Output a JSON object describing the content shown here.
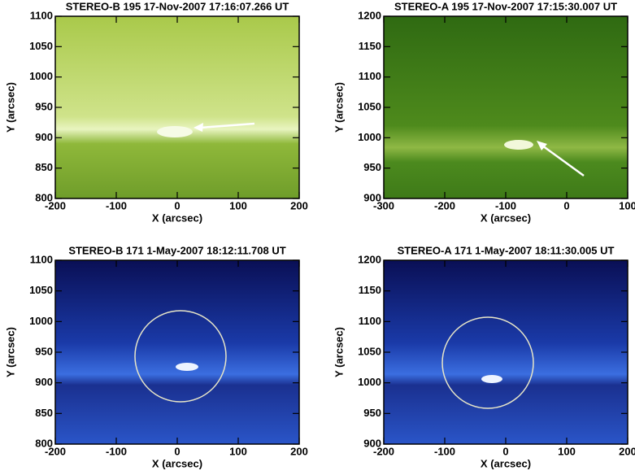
{
  "chart_data": [
    {
      "type": "image",
      "title": "STEREO-B 195 17-Nov-2007 17:16:07.266 UT",
      "xlabel": "X (arcsec)",
      "ylabel": "Y (arcsec)",
      "palette": "green",
      "xlim": [
        -200,
        200
      ],
      "xticks": [
        -200,
        -100,
        0,
        100,
        200
      ],
      "ylim": [
        800,
        1100
      ],
      "yticks": [
        800,
        850,
        900,
        950,
        1000,
        1050,
        1100
      ]
    },
    {
      "type": "image",
      "title": "STEREO-A 195 17-Nov-2007 17:15:30.007 UT",
      "xlabel": "X (arcsec)",
      "ylabel": "Y (arcsec)",
      "palette": "green",
      "xlim": [
        -300,
        100
      ],
      "xticks": [
        -300,
        -200,
        -100,
        0,
        100
      ],
      "ylim": [
        900,
        1200
      ],
      "yticks": [
        900,
        950,
        1000,
        1050,
        1100,
        1150,
        1200
      ]
    },
    {
      "type": "image",
      "title": "STEREO-B 171 1-May-2007 18:12:11.708 UT",
      "xlabel": "X (arcsec)",
      "ylabel": "Y (arcsec)",
      "palette": "blue",
      "xlim": [
        -200,
        200
      ],
      "xticks": [
        -200,
        -100,
        0,
        100,
        200
      ],
      "ylim": [
        800,
        1100
      ],
      "yticks": [
        800,
        850,
        900,
        950,
        1000,
        1050,
        1100
      ]
    },
    {
      "type": "image",
      "title": "STEREO-A 171 1-May-2007 18:11:30.005 UT",
      "xlabel": "X (arcsec)",
      "ylabel": "Y (arcsec)",
      "palette": "blue",
      "xlim": [
        -200,
        200
      ],
      "xticks": [
        -200,
        -100,
        0,
        100,
        200
      ],
      "ylim": [
        900,
        1200
      ],
      "yticks": [
        900,
        950,
        1000,
        1050,
        1100,
        1150,
        1200
      ]
    }
  ]
}
